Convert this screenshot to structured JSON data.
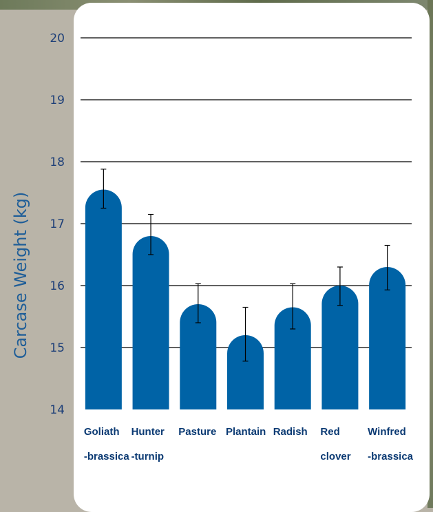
{
  "colors": {
    "bar": "#0063a6",
    "axis_text": "#1d3f78",
    "ylabel": "#1f5e98",
    "background": "#b9b4a8",
    "panel": "#ffffff"
  },
  "chart_data": {
    "type": "bar",
    "ylabel": "Carcase Weight (kg)",
    "xlabel": "",
    "ylim": [
      14,
      20
    ],
    "yticks": [
      14,
      15,
      16,
      17,
      18,
      19,
      20
    ],
    "grid": true,
    "categories": [
      [
        "Goliath",
        "-brassica"
      ],
      [
        "Hunter",
        "-turnip"
      ],
      [
        "Pasture"
      ],
      [
        "Plantain"
      ],
      [
        "Radish"
      ],
      [
        "Red",
        "clover"
      ],
      [
        "Winfred",
        "-brassica"
      ]
    ],
    "values": [
      17.55,
      16.8,
      15.7,
      15.2,
      15.65,
      16.0,
      16.3
    ],
    "error_low": [
      17.25,
      16.5,
      15.4,
      14.78,
      15.3,
      15.68,
      15.93
    ],
    "error_high": [
      17.88,
      17.15,
      16.03,
      15.65,
      16.03,
      16.3,
      16.65
    ]
  }
}
